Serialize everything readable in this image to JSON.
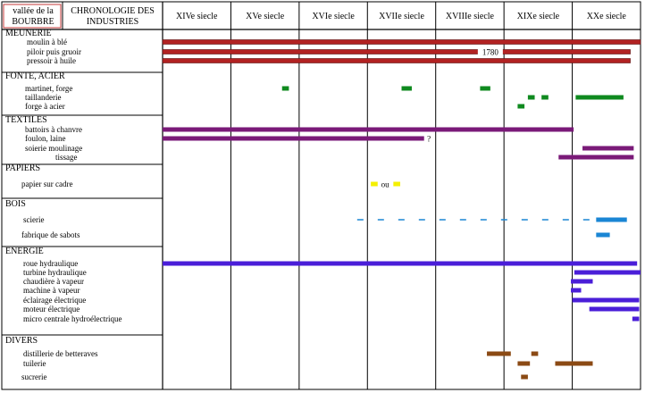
{
  "header": {
    "region_lines": [
      "vallée de la",
      "BOURBRE"
    ],
    "title_lines": [
      "CHRONOLOGIE DES",
      "INDUSTRIES"
    ]
  },
  "centuries": [
    "XIVe siecle",
    "XVe siecle",
    "XVIe siecle",
    "XVIIe siecle",
    "XVIIIe siecle",
    "XIXe siecle",
    "XXe siecle"
  ],
  "categories": [
    {
      "name": "MEUNERIE",
      "items": [
        "moulin à blé",
        "piloir puis gruoir",
        "pressoir à huile"
      ]
    },
    {
      "name": "FONTE, ACIER",
      "items": [
        "martinet, forge",
        "taillanderie",
        "forge à acier"
      ]
    },
    {
      "name": "TEXTILES",
      "items": [
        "battoirs à chanvre",
        "foulon, laine",
        "soierie moulinage",
        "tissage"
      ]
    },
    {
      "name": "PAPIERS",
      "items": [
        "papier sur cadre"
      ]
    },
    {
      "name": "BOIS",
      "items": [
        "scierie",
        "fabrique de sabots"
      ]
    },
    {
      "name": "ENERGIE",
      "items": [
        "roue hydraulique",
        "turbine hydraulique",
        "chaudière à vapeur",
        "machine à vapeur",
        "éclairage électrique",
        "moteur électrique",
        "micro centrale hydroélectrique"
      ]
    },
    {
      "name": "DIVERS",
      "items": [
        "distillerie de betteraves",
        "tuilerie",
        "sucrerie"
      ]
    }
  ],
  "annotations": {
    "year_1780": "1780",
    "uncertain": "?",
    "or": "ou"
  },
  "colors": {
    "meunerie": "#b22222",
    "fonte": "#0f8a1f",
    "textiles": "#7a1a78",
    "papiers": "#f4f000",
    "bois": "#1a86d4",
    "energie": "#4a1ed8",
    "divers": "#8b4a14"
  },
  "chart_data": {
    "type": "timeline",
    "x_unit": "year",
    "x_range": [
      1300,
      2000
    ],
    "series": [
      {
        "item": "moulin à blé",
        "color": "meunerie",
        "bars": [
          [
            1300,
            2000
          ]
        ]
      },
      {
        "item": "piloir puis gruoir",
        "color": "meunerie",
        "bars": [
          [
            1300,
            1985
          ]
        ],
        "label": "1780",
        "label_year": 1780
      },
      {
        "item": "pressoir à huile",
        "color": "meunerie",
        "bars": [
          [
            1300,
            1985
          ]
        ]
      },
      {
        "item": "martinet, forge",
        "color": "fonte",
        "bars": [
          [
            1475,
            1485
          ],
          [
            1650,
            1665
          ],
          [
            1765,
            1780
          ]
        ]
      },
      {
        "item": "taillanderie",
        "color": "fonte",
        "bars": [
          [
            1835,
            1845
          ],
          [
            1855,
            1865
          ],
          [
            1905,
            1975
          ]
        ]
      },
      {
        "item": "forge à acier",
        "color": "fonte",
        "bars": [
          [
            1820,
            1830
          ]
        ]
      },
      {
        "item": "battoirs à chanvre",
        "color": "textiles",
        "bars": [
          [
            1300,
            1902
          ]
        ]
      },
      {
        "item": "foulon, laine",
        "color": "textiles",
        "bars": [
          [
            1300,
            1683
          ]
        ],
        "label": "?",
        "label_year": 1690
      },
      {
        "item": "soierie moulinage",
        "color": "textiles",
        "bars": [
          [
            1915,
            1990
          ]
        ]
      },
      {
        "item": "tissage",
        "color": "textiles",
        "bars": [
          [
            1880,
            1990
          ]
        ]
      },
      {
        "item": "papier sur cadre",
        "color": "papiers",
        "bars": [
          [
            1605,
            1615
          ],
          [
            1638,
            1648
          ]
        ],
        "label": "ou",
        "label_year": 1626
      },
      {
        "item": "scierie",
        "color": "bois",
        "dashed": [
          [
            1585,
            1935
          ]
        ],
        "bars": [
          [
            1935,
            1980
          ]
        ]
      },
      {
        "item": "fabrique de sabots",
        "color": "bois",
        "bars": [
          [
            1935,
            1955
          ]
        ]
      },
      {
        "item": "roue hydraulique",
        "color": "energie",
        "bars": [
          [
            1300,
            1995
          ]
        ]
      },
      {
        "item": "turbine hydraulique",
        "color": "energie",
        "bars": [
          [
            1903,
            2000
          ]
        ]
      },
      {
        "item": "chaudière à vapeur",
        "color": "energie",
        "bars": [
          [
            1898,
            1930
          ]
        ]
      },
      {
        "item": "machine à vapeur",
        "color": "energie",
        "bars": [
          [
            1898,
            1913
          ]
        ]
      },
      {
        "item": "éclairage électrique",
        "color": "energie",
        "bars": [
          [
            1900,
            1998
          ]
        ]
      },
      {
        "item": "moteur électrique",
        "color": "energie",
        "bars": [
          [
            1925,
            1998
          ]
        ]
      },
      {
        "item": "micro centrale hydroélectrique",
        "color": "energie",
        "bars": [
          [
            1988,
            1998
          ]
        ]
      },
      {
        "item": "distillerie de betteraves",
        "color": "divers",
        "bars": [
          [
            1775,
            1810
          ],
          [
            1840,
            1850
          ]
        ]
      },
      {
        "item": "tuilerie",
        "color": "divers",
        "bars": [
          [
            1820,
            1838
          ],
          [
            1875,
            1930
          ]
        ]
      },
      {
        "item": "sucrerie",
        "color": "divers",
        "bars": [
          [
            1825,
            1835
          ]
        ]
      }
    ]
  }
}
